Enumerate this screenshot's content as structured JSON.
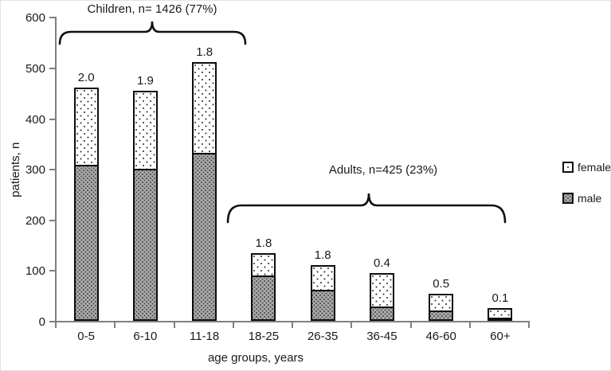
{
  "figure": {
    "y_axis_title": "patients, n",
    "x_axis_title": "age groups, years",
    "children_annotation": "Children, n= 1426 (77%)",
    "adults_annotation": "Adults, n=425 (23%)",
    "legend": {
      "female_label": "female",
      "male_label": "male"
    },
    "colors": {
      "axis": "#7f7f7f",
      "bar_border": "#0d0d0d",
      "male_fill": "#adadad",
      "female_fill": "#ffffff",
      "text": "#1a1a1a"
    }
  },
  "chart_data": {
    "type": "bar",
    "stacked": true,
    "categories": [
      "0-5",
      "6-10",
      "11-18",
      "18-25",
      "26-35",
      "36-45",
      "46-60",
      "60+"
    ],
    "series": [
      {
        "name": "male",
        "values": [
          305,
          297,
          328,
          86,
          58,
          25,
          17,
          2
        ],
        "pattern": "dark-dot-hatch"
      },
      {
        "name": "female",
        "values": [
          155,
          158,
          183,
          47,
          52,
          70,
          37,
          23
        ],
        "pattern": "white-sparse-dots"
      }
    ],
    "totals": [
      460,
      455,
      511,
      133,
      110,
      95,
      54,
      25
    ],
    "bar_value_labels": [
      "2.0",
      "1.9",
      "1.8",
      "1.8",
      "1.8",
      "0.4",
      "0.5",
      "0.1"
    ],
    "xlabel": "age groups, years",
    "ylabel": "patients, n",
    "ylim": [
      0,
      600
    ],
    "y_tick_step": 100,
    "y_tick_labels": [
      "0",
      "100",
      "200",
      "300",
      "400",
      "500",
      "600"
    ],
    "grid": false,
    "legend_position": "right",
    "legend_entries": [
      "female",
      "male"
    ],
    "annotations": [
      {
        "text": "Children, n= 1426 (77%)",
        "span_categories": [
          "0-5",
          "11-18"
        ]
      },
      {
        "text": "Adults, n=425 (23%)",
        "span_categories": [
          "18-25",
          "60+"
        ]
      }
    ]
  }
}
